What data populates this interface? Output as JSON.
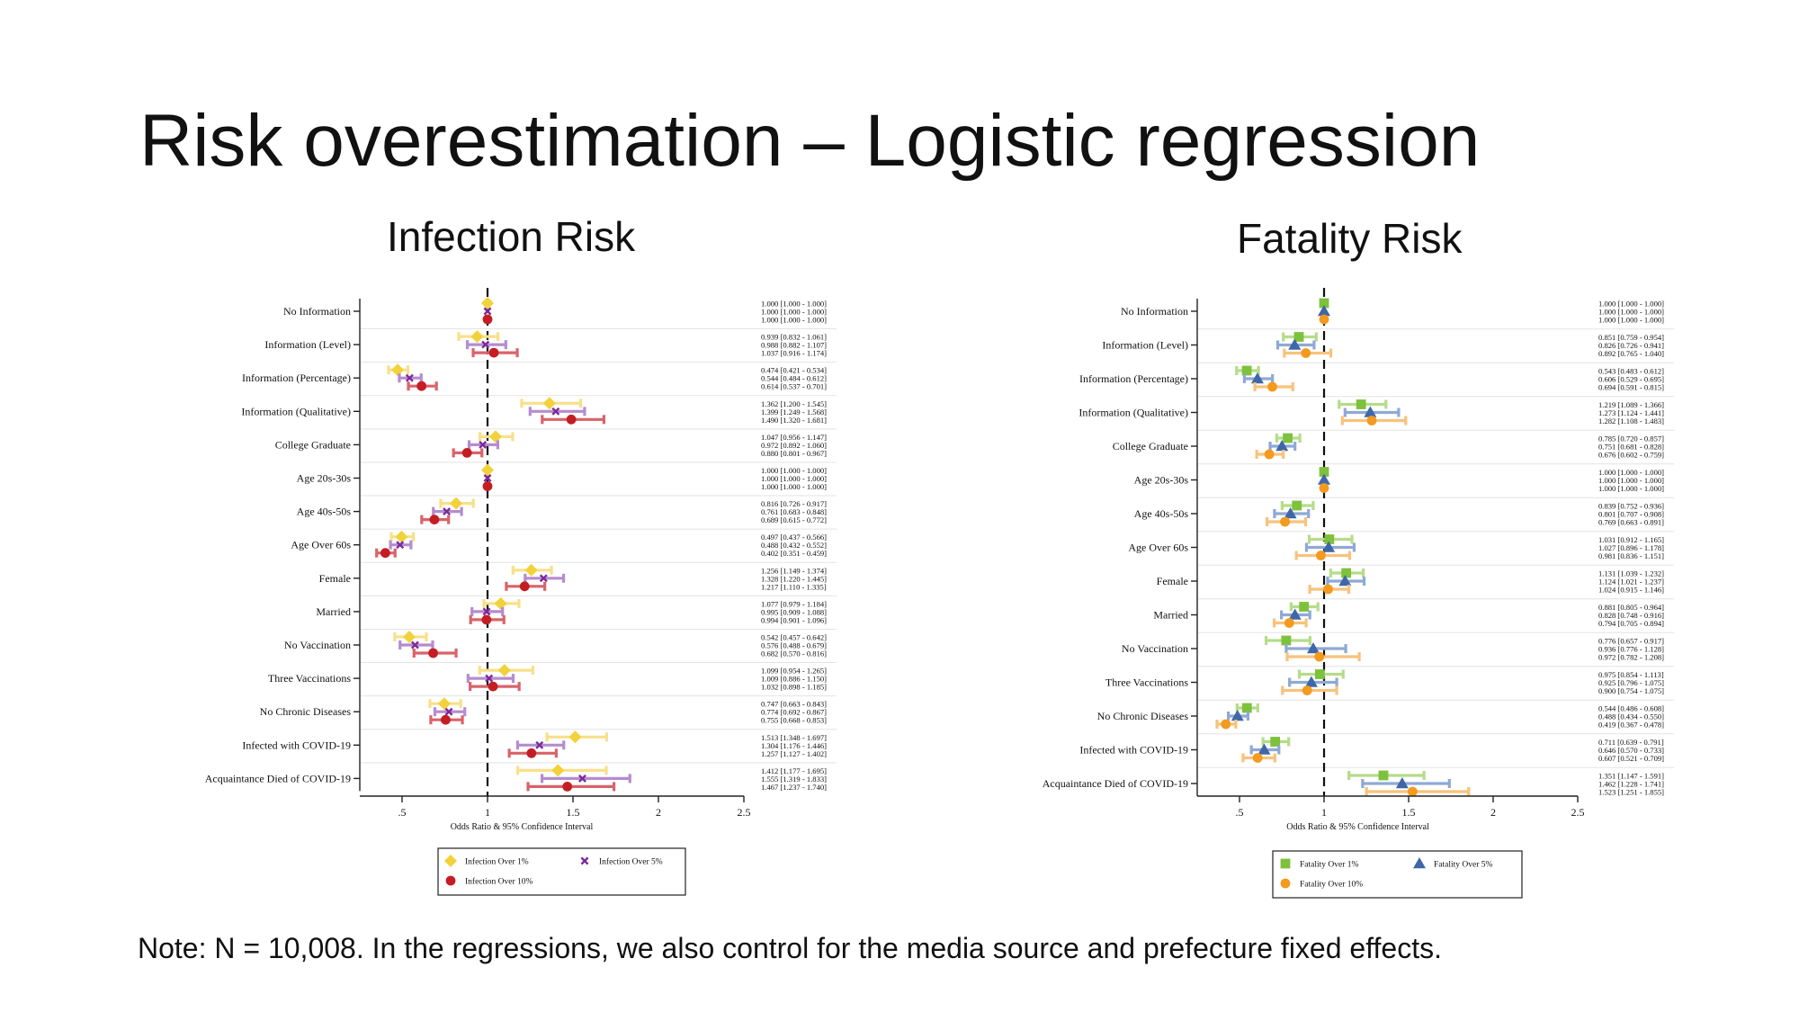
{
  "slide": {
    "title": "Risk overestimation – Logistic regression",
    "note": "Note: N = 10,008. In the regressions, we also control for the media source and prefecture fixed effects."
  },
  "chart_data": [
    {
      "type": "scatter",
      "panel_title": "Infection Risk",
      "xlabel": "Odds Ratio & 95% Confidence Interval",
      "xlim": [
        0.32,
        2.5
      ],
      "xticks": [
        0.5,
        1,
        1.5,
        2,
        2.5
      ],
      "xtick_labels": [
        ".5",
        "1",
        "1.5",
        "2",
        "2.5"
      ],
      "reference_line": 1,
      "categories": [
        "No Information",
        "Information (Level)",
        "Information (Percentage)",
        "Information (Qualitative)",
        "College Graduate",
        "Age 20s-30s",
        "Age 40s-50s",
        "Age Over 60s",
        "Female",
        "Married",
        "No Vaccination",
        "Three Vaccinations",
        "No Chronic Diseases",
        "Infected with COVID-19",
        "Acquaintance Died of COVID-19"
      ],
      "legend_position": "bottom",
      "series": [
        {
          "name": "Infection Over 1%",
          "marker": "diamond",
          "color": "#f2d23a",
          "ci_color": "#f8e08a",
          "or": [
            1.0,
            0.939,
            0.474,
            1.362,
            1.047,
            1.0,
            0.816,
            0.497,
            1.256,
            1.077,
            0.542,
            1.099,
            0.747,
            1.513,
            1.412
          ],
          "ci_low": [
            1.0,
            0.832,
            0.421,
            1.2,
            0.956,
            1.0,
            0.726,
            0.437,
            1.149,
            0.979,
            0.457,
            0.954,
            0.663,
            1.348,
            1.177
          ],
          "ci_high": [
            1.0,
            1.061,
            0.534,
            1.545,
            1.147,
            1.0,
            0.917,
            0.566,
            1.374,
            1.184,
            0.642,
            1.265,
            0.843,
            1.697,
            1.695
          ],
          "ci_text": [
            "1.000 [1.000 - 1.000]",
            "0.939 [0.832 - 1.061]",
            "0.474 [0.421 - 0.534]",
            "1.362 [1.200 - 1.545]",
            "1.047 [0.956 - 1.147]",
            "1.000 [1.000 - 1.000]",
            "0.816 [0.726 - 0.917]",
            "0.497 [0.437 - 0.566]",
            "1.256 [1.149 - 1.374]",
            "1.077 [0.979 - 1.184]",
            "0.542 [0.457 - 0.642]",
            "1.099 [0.954 - 1.265]",
            "0.747 [0.663 - 0.843]",
            "1.513 [1.348 - 1.697]",
            "1.412 [1.177 - 1.695]"
          ]
        },
        {
          "name": "Infection Over 5%",
          "marker": "x",
          "color": "#7b2a9a",
          "ci_color": "#b58ccf",
          "or": [
            1.0,
            0.988,
            0.544,
            1.399,
            0.972,
            1.0,
            0.761,
            0.488,
            1.328,
            0.995,
            0.576,
            1.009,
            0.774,
            1.304,
            1.555
          ],
          "ci_low": [
            1.0,
            0.882,
            0.484,
            1.249,
            0.892,
            1.0,
            0.683,
            0.432,
            1.22,
            0.909,
            0.488,
            0.886,
            0.692,
            1.176,
            1.319
          ],
          "ci_high": [
            1.0,
            1.107,
            0.612,
            1.568,
            1.06,
            1.0,
            0.848,
            0.552,
            1.445,
            1.088,
            0.679,
            1.15,
            0.867,
            1.446,
            1.833
          ],
          "ci_text": [
            "1.000 [1.000 - 1.000]",
            "0.988 [0.882 - 1.107]",
            "0.544 [0.484 - 0.612]",
            "1.399 [1.249 - 1.568]",
            "0.972 [0.892 - 1.060]",
            "1.000 [1.000 - 1.000]",
            "0.761 [0.683 - 0.848]",
            "0.488 [0.432 - 0.552]",
            "1.328 [1.220 - 1.445]",
            "0.995 [0.909 - 1.088]",
            "0.576 [0.488 - 0.679]",
            "1.009 [0.886 - 1.150]",
            "0.774 [0.692 - 0.867]",
            "1.304 [1.176 - 1.446]",
            "1.555 [1.319 - 1.833]"
          ]
        },
        {
          "name": "Infection Over 10%",
          "marker": "circle",
          "color": "#c41e24",
          "ci_color": "#d9636a",
          "or": [
            1.0,
            1.037,
            0.614,
            1.49,
            0.88,
            1.0,
            0.689,
            0.402,
            1.217,
            0.994,
            0.682,
            1.032,
            0.755,
            1.257,
            1.467
          ],
          "ci_low": [
            1.0,
            0.916,
            0.537,
            1.32,
            0.801,
            1.0,
            0.615,
            0.351,
            1.11,
            0.901,
            0.57,
            0.898,
            0.668,
            1.127,
            1.237
          ],
          "ci_high": [
            1.0,
            1.174,
            0.701,
            1.681,
            0.967,
            1.0,
            0.772,
            0.459,
            1.335,
            1.096,
            0.816,
            1.185,
            0.853,
            1.402,
            1.74
          ],
          "ci_text": [
            "1.000 [1.000 - 1.000]",
            "1.037 [0.916 - 1.174]",
            "0.614 [0.537 - 0.701]",
            "1.490 [1.320 - 1.681]",
            "0.880 [0.801 - 0.967]",
            "1.000 [1.000 - 1.000]",
            "0.689 [0.615 - 0.772]",
            "0.402 [0.351 - 0.459]",
            "1.217 [1.110 - 1.335]",
            "0.994 [0.901 - 1.096]",
            "0.682 [0.570 - 0.816]",
            "1.032 [0.898 - 1.185]",
            "0.755 [0.668 - 0.853]",
            "1.257 [1.127 - 1.402]",
            "1.467 [1.237 - 1.740]"
          ]
        }
      ]
    },
    {
      "type": "scatter",
      "panel_title": "Fatality Risk",
      "xlabel": "Odds Ratio & 95% Confidence Interval",
      "xlim": [
        0.32,
        2.5
      ],
      "xticks": [
        0.5,
        1,
        1.5,
        2,
        2.5
      ],
      "xtick_labels": [
        ".5",
        "1",
        "1.5",
        "2",
        "2.5"
      ],
      "reference_line": 1,
      "categories": [
        "No Information",
        "Information (Level)",
        "Information (Percentage)",
        "Information (Qualitative)",
        "College Graduate",
        "Age 20s-30s",
        "Age 40s-50s",
        "Age Over 60s",
        "Female",
        "Married",
        "No Vaccination",
        "Three Vaccinations",
        "No Chronic Diseases",
        "Infected with COVID-19",
        "Acquaintance Died of COVID-19"
      ],
      "legend_position": "bottom",
      "series": [
        {
          "name": "Fatality Over 1%",
          "marker": "square",
          "color": "#7ec13c",
          "ci_color": "#b5dc8a",
          "or": [
            1.0,
            0.851,
            0.543,
            1.219,
            0.785,
            1.0,
            0.839,
            1.031,
            1.131,
            0.881,
            0.776,
            0.975,
            0.544,
            0.711,
            1.351
          ],
          "ci_low": [
            1.0,
            0.759,
            0.483,
            1.089,
            0.72,
            1.0,
            0.752,
            0.912,
            1.039,
            0.805,
            0.657,
            0.854,
            0.486,
            0.639,
            1.147
          ],
          "ci_high": [
            1.0,
            0.954,
            0.612,
            1.366,
            0.857,
            1.0,
            0.936,
            1.165,
            1.232,
            0.964,
            0.917,
            1.113,
            0.608,
            0.791,
            1.591
          ],
          "ci_text": [
            "1.000 [1.000 - 1.000]",
            "0.851 [0.759 - 0.954]",
            "0.543 [0.483 - 0.612]",
            "1.219 [1.089 - 1.366]",
            "0.785 [0.720 - 0.857]",
            "1.000 [1.000 - 1.000]",
            "0.839 [0.752 - 0.936]",
            "1.031 [0.912 - 1.165]",
            "1.131 [1.039 - 1.232]",
            "0.881 [0.805 - 0.964]",
            "0.776 [0.657 - 0.917]",
            "0.975 [0.854 - 1.113]",
            "0.544 [0.486 - 0.608]",
            "0.711 [0.639 - 0.791]",
            "1.351 [1.147 - 1.591]"
          ]
        },
        {
          "name": "Fatality Over 5%",
          "marker": "triangle",
          "color": "#3f67a8",
          "ci_color": "#8ea9d6",
          "or": [
            1.0,
            0.826,
            0.606,
            1.273,
            0.751,
            1.0,
            0.801,
            1.027,
            1.124,
            0.828,
            0.936,
            0.925,
            0.488,
            0.646,
            1.462
          ],
          "ci_low": [
            1.0,
            0.726,
            0.529,
            1.124,
            0.681,
            1.0,
            0.707,
            0.896,
            1.021,
            0.748,
            0.776,
            0.796,
            0.434,
            0.57,
            1.228
          ],
          "ci_high": [
            1.0,
            0.941,
            0.695,
            1.441,
            0.828,
            1.0,
            0.908,
            1.178,
            1.237,
            0.916,
            1.128,
            1.075,
            0.55,
            0.733,
            1.741
          ],
          "ci_text": [
            "1.000 [1.000 - 1.000]",
            "0.826 [0.726 - 0.941]",
            "0.606 [0.529 - 0.695]",
            "1.273 [1.124 - 1.441]",
            "0.751 [0.681 - 0.828]",
            "1.000 [1.000 - 1.000]",
            "0.801 [0.707 - 0.908]",
            "1.027 [0.896 - 1.178]",
            "1.124 [1.021 - 1.237]",
            "0.828 [0.748 - 0.916]",
            "0.936 [0.776 - 1.128]",
            "0.925 [0.796 - 1.075]",
            "0.488 [0.434 - 0.550]",
            "0.646 [0.570 - 0.733]",
            "1.462 [1.228 - 1.741]"
          ]
        },
        {
          "name": "Fatality Over 10%",
          "marker": "circle",
          "color": "#f39a1f",
          "ci_color": "#f8c27c",
          "or": [
            1.0,
            0.892,
            0.694,
            1.282,
            0.676,
            1.0,
            0.769,
            0.981,
            1.024,
            0.794,
            0.972,
            0.9,
            0.419,
            0.607,
            1.523
          ],
          "ci_low": [
            1.0,
            0.765,
            0.591,
            1.108,
            0.602,
            1.0,
            0.663,
            0.836,
            0.915,
            0.705,
            0.782,
            0.754,
            0.367,
            0.521,
            1.251
          ],
          "ci_high": [
            1.0,
            1.04,
            0.815,
            1.483,
            0.759,
            1.0,
            0.891,
            1.151,
            1.146,
            0.894,
            1.208,
            1.075,
            0.478,
            0.709,
            1.855
          ],
          "ci_text": [
            "1.000 [1.000 - 1.000]",
            "0.892 [0.765 - 1.040]",
            "0.694 [0.591 - 0.815]",
            "1.282 [1.108 - 1.483]",
            "0.676 [0.602 - 0.759]",
            "1.000 [1.000 - 1.000]",
            "0.769 [0.663 - 0.891]",
            "0.981 [0.836 - 1.151]",
            "1.024 [0.915 - 1.146]",
            "0.794 [0.705 - 0.894]",
            "0.972 [0.782 - 1.208]",
            "0.900 [0.754 - 1.075]",
            "0.419 [0.367 - 0.478]",
            "0.607 [0.521 - 0.709]",
            "1.523 [1.251 - 1.855]"
          ]
        }
      ]
    }
  ]
}
